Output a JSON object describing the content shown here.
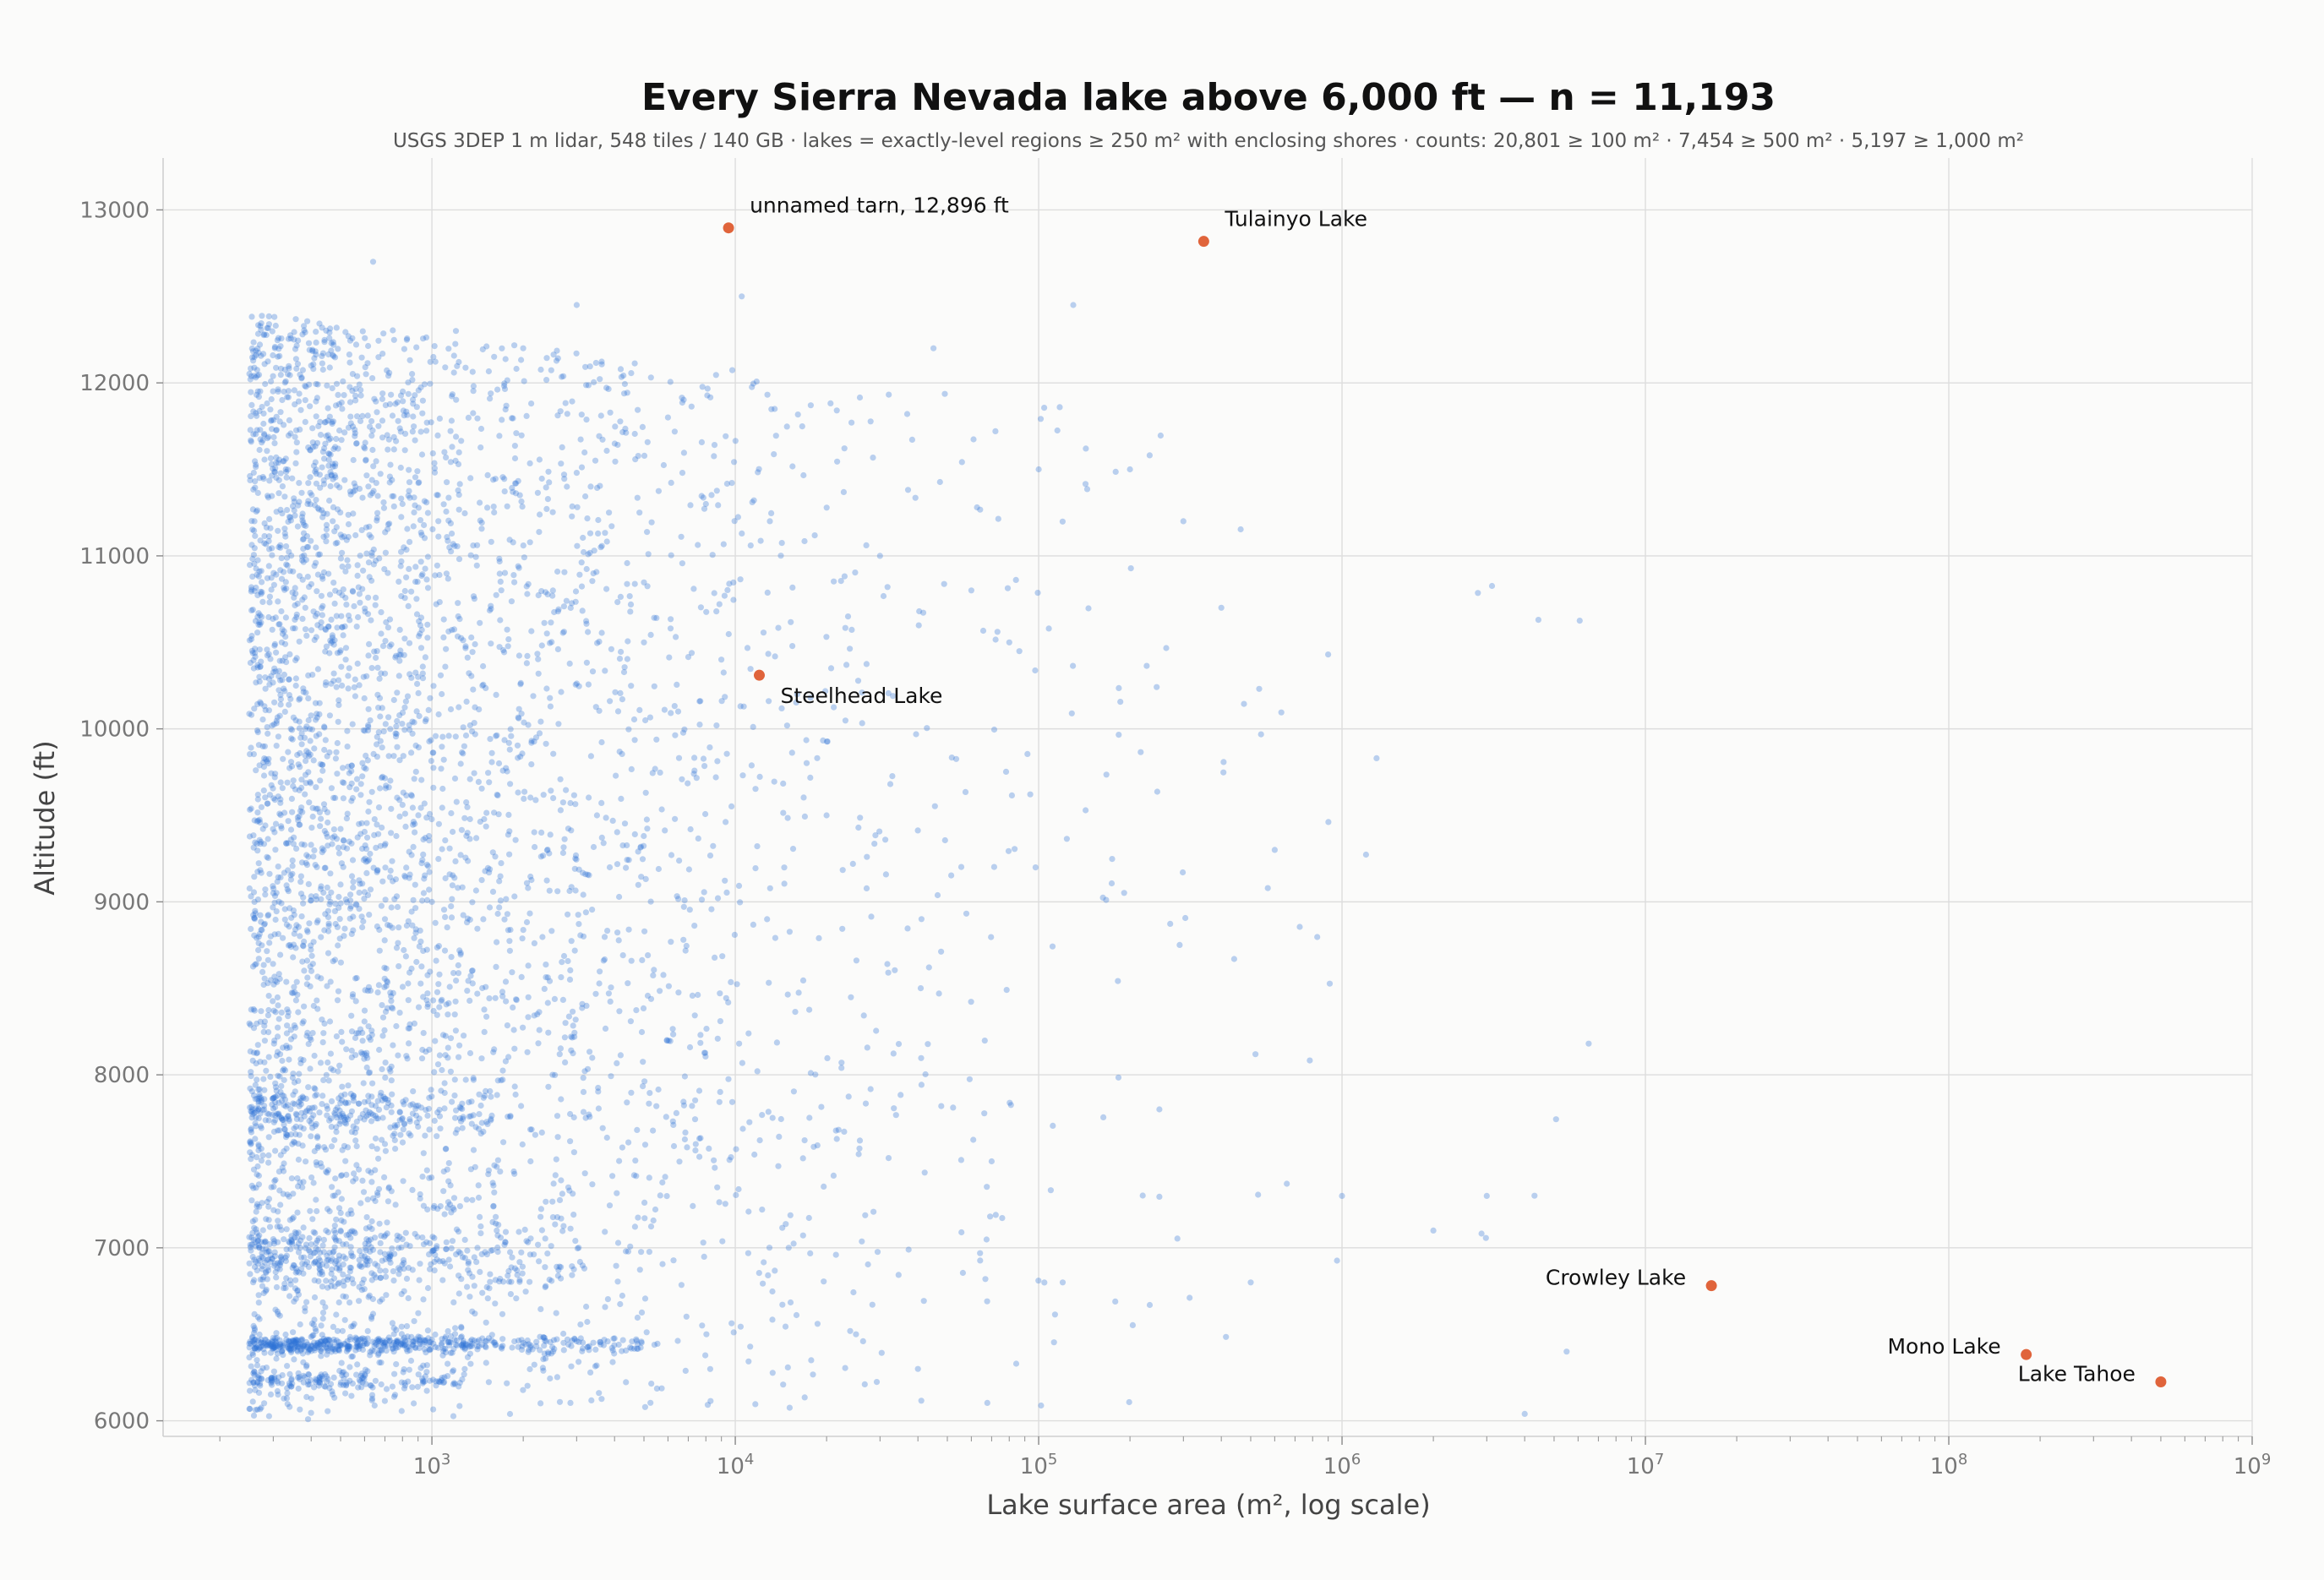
{
  "chart_data": {
    "type": "scatter",
    "title": "Every Sierra Nevada lake above 6,000 ft — n = 11,193",
    "subtitle": "USGS 3DEP 1 m lidar, 548 tiles / 140 GB · lakes = exactly-level regions ≥ 250 m² with enclosing shores · counts: 20,801 ≥ 100 m² · 7,454 ≥ 500 m² · 5,197 ≥ 1,000 m²",
    "xlabel": "Lake surface area (m², log scale)",
    "ylabel": "Altitude (ft)",
    "x_scale": "log",
    "xlim": [
      130,
      1000000000
    ],
    "ylim": [
      5910,
      13300
    ],
    "x_ticks": [
      {
        "value": 1000,
        "base": "10",
        "exp": "3"
      },
      {
        "value": 10000,
        "base": "10",
        "exp": "4"
      },
      {
        "value": 100000,
        "base": "10",
        "exp": "5"
      },
      {
        "value": 1000000,
        "base": "10",
        "exp": "6"
      },
      {
        "value": 10000000,
        "base": "10",
        "exp": "7"
      },
      {
        "value": 100000000,
        "base": "10",
        "exp": "8"
      },
      {
        "value": 1000000000,
        "base": "10",
        "exp": "9"
      }
    ],
    "y_ticks": [
      {
        "value": 6000,
        "label": "6000"
      },
      {
        "value": 7000,
        "label": "7000"
      },
      {
        "value": 8000,
        "label": "8000"
      },
      {
        "value": 9000,
        "label": "9000"
      },
      {
        "value": 10000,
        "label": "10000"
      },
      {
        "value": 11000,
        "label": "11000"
      },
      {
        "value": 12000,
        "label": "12000"
      },
      {
        "value": 13000,
        "label": "13000"
      }
    ],
    "grid": true,
    "series": [
      {
        "color": "#2f72d6",
        "point_count": 11193,
        "sampled_points": [
          [
            260,
            6420
          ],
          [
            280,
            6450
          ],
          [
            300,
            6480
          ],
          [
            320,
            6400
          ],
          [
            350,
            6460
          ],
          [
            400,
            6430
          ],
          [
            450,
            6470
          ],
          [
            500,
            6440
          ],
          [
            600,
            6460
          ],
          [
            700,
            6430
          ],
          [
            800,
            6450
          ],
          [
            1000,
            6470
          ],
          [
            1200,
            6440
          ],
          [
            1500,
            6460
          ],
          [
            2000,
            6450
          ],
          [
            3000,
            6460
          ],
          [
            270,
            7000
          ],
          [
            300,
            7050
          ],
          [
            350,
            6900
          ],
          [
            400,
            7020
          ],
          [
            500,
            7100
          ],
          [
            600,
            6950
          ],
          [
            800,
            7050
          ],
          [
            1000,
            6980
          ],
          [
            280,
            7800
          ],
          [
            320,
            7850
          ],
          [
            380,
            7760
          ],
          [
            450,
            7820
          ],
          [
            560,
            7620
          ],
          [
            700,
            7600
          ],
          [
            900,
            7700
          ],
          [
            260,
            9000
          ],
          [
            300,
            9050
          ],
          [
            350,
            8950
          ],
          [
            500,
            9100
          ],
          [
            700,
            8900
          ],
          [
            1000,
            9000
          ],
          [
            270,
            10300
          ],
          [
            320,
            10500
          ],
          [
            420,
            10600
          ],
          [
            520,
            10400
          ],
          [
            680,
            10550
          ],
          [
            900,
            10300
          ],
          [
            260,
            11200
          ],
          [
            330,
            11500
          ],
          [
            430,
            11700
          ],
          [
            560,
            11400
          ],
          [
            800,
            11300
          ],
          [
            1100,
            11600
          ],
          [
            260,
            12150
          ],
          [
            400,
            12100
          ],
          [
            640,
            12700
          ],
          [
            1200,
            12300
          ],
          [
            2000,
            12200
          ],
          [
            3000,
            12450
          ],
          [
            2500,
            8000
          ],
          [
            3500,
            9500
          ],
          [
            5000,
            10500
          ],
          [
            6000,
            11800
          ],
          [
            8000,
            11300
          ],
          [
            9000,
            10400
          ],
          [
            10500,
            12500
          ],
          [
            13000,
            11200
          ],
          [
            16000,
            10200
          ],
          [
            20000,
            9500
          ],
          [
            30000,
            11000
          ],
          [
            45000,
            12200
          ],
          [
            60000,
            10800
          ],
          [
            80000,
            10500
          ],
          [
            100000,
            11500
          ],
          [
            130000,
            12450
          ],
          [
            200000,
            11500
          ],
          [
            300000,
            11200
          ],
          [
            400000,
            10700
          ],
          [
            600000,
            9300
          ],
          [
            900000,
            10430
          ],
          [
            1300000,
            9830
          ],
          [
            3000000,
            7300
          ],
          [
            6500000,
            8180
          ],
          [
            15000,
            7000
          ],
          [
            25000,
            6500
          ],
          [
            40000,
            6300
          ],
          [
            70000,
            7500
          ],
          [
            120000,
            6800
          ],
          [
            250000,
            7800
          ],
          [
            500000,
            6800
          ],
          [
            1000000,
            7300
          ],
          [
            2000000,
            7100
          ],
          [
            4000000,
            6040
          ],
          [
            5500000,
            6400
          ]
        ]
      }
    ],
    "highlighted": [
      {
        "name": "unnamed tarn, 12,896 ft",
        "x": 9500,
        "y": 12896,
        "color": "#e0643b",
        "label_side": "upper-right"
      },
      {
        "name": "Tulainyo Lake",
        "x": 350000,
        "y": 12818,
        "color": "#e0643b",
        "label_side": "upper-right"
      },
      {
        "name": "Steelhead Lake",
        "x": 12000,
        "y": 10310,
        "color": "#e0643b",
        "label_side": "lower-right"
      },
      {
        "name": "Crowley Lake",
        "x": 16500000,
        "y": 6781,
        "color": "#e0643b",
        "label_side": "upper-left"
      },
      {
        "name": "Mono Lake",
        "x": 180000000,
        "y": 6383,
        "color": "#e0643b",
        "label_side": "upper-left"
      },
      {
        "name": "Lake Tahoe",
        "x": 500000000,
        "y": 6225,
        "color": "#e0643b",
        "label_side": "upper-left"
      }
    ]
  }
}
